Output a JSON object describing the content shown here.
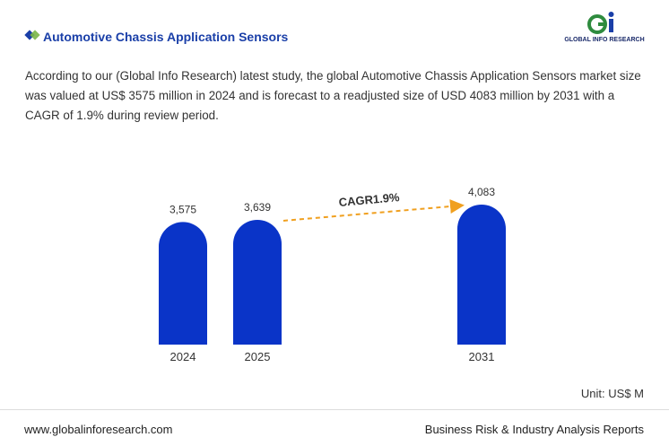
{
  "header": {
    "title": "Automotive Chassis Application Sensors",
    "logo_text": "GLOBAL INFO RESEARCH"
  },
  "description": "According to our (Global Info Research) latest study, the global Automotive Chassis Application Sensors market size was valued at US$ 3575 million in 2024 and is forecast to a readjusted size of USD 4083 million by 2031 with a CAGR of 1.9% during review period.",
  "chart_data": {
    "type": "bar",
    "categories": [
      "2024",
      "2025",
      "2031"
    ],
    "values": [
      3575,
      3639,
      4083
    ],
    "value_labels": [
      "3,575",
      "3,639",
      "4,083"
    ],
    "color": "#0a34c8",
    "annotation": "CAGR1.9%",
    "unit": "Unit: US$ M"
  },
  "footer": {
    "left": "www.globalinforesearch.com",
    "right": "Business Risk & Industry Analysis Reports"
  }
}
